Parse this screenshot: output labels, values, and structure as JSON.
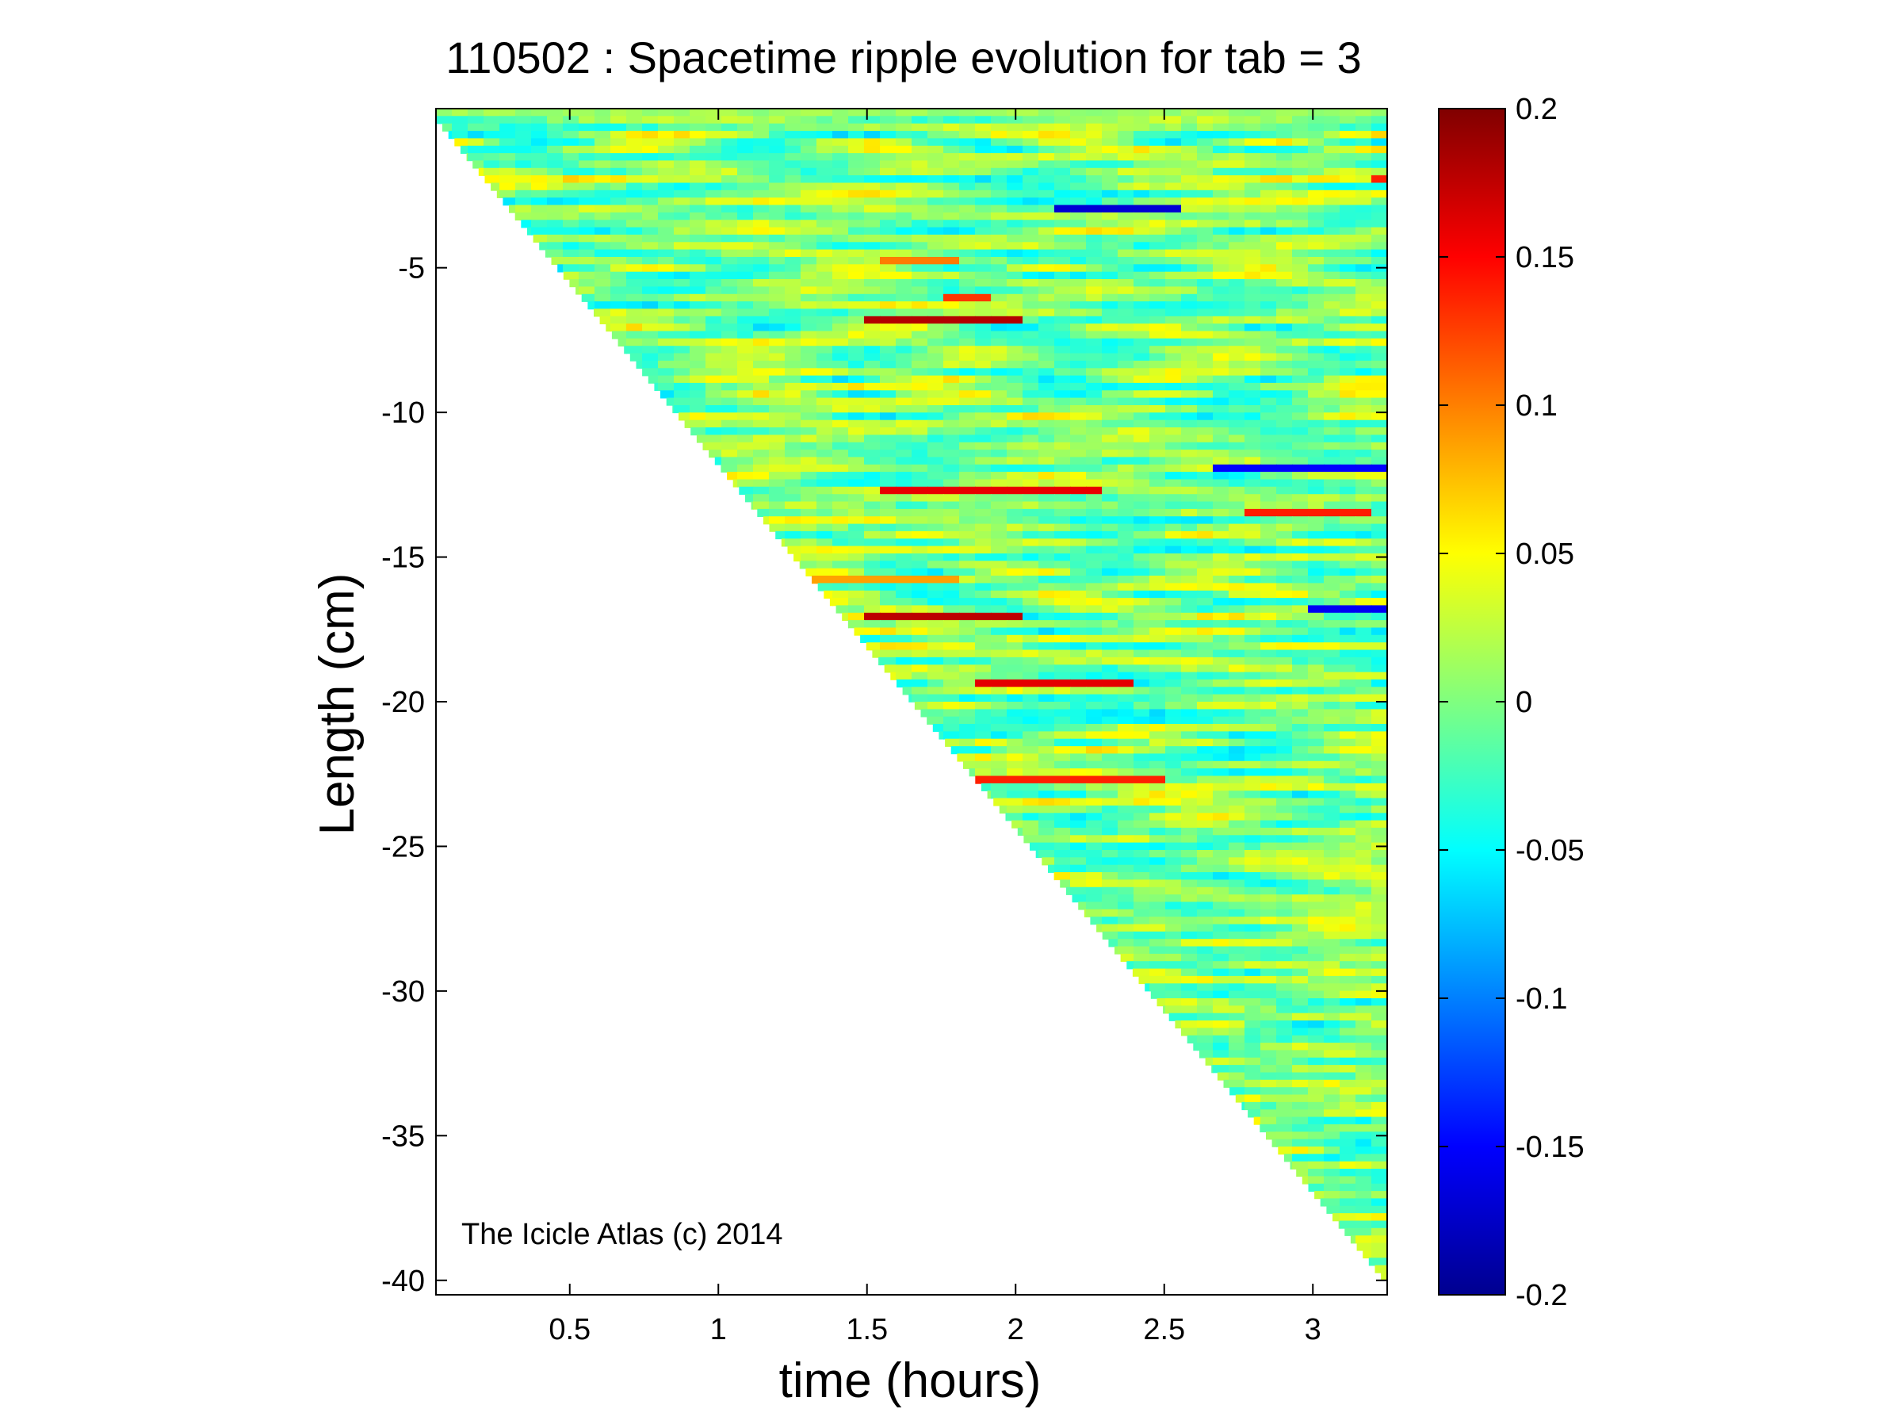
{
  "chart_data": {
    "type": "heatmap",
    "title": "110502 : Spacetime ripple evolution for tab = 3",
    "xlabel": "time (hours)",
    "ylabel": "Length (cm)",
    "xlim": [
      0.05,
      3.25
    ],
    "ylim": [
      -40.5,
      0.5
    ],
    "xticks": [
      0.5,
      1,
      1.5,
      2,
      2.5,
      3
    ],
    "xtick_labels": [
      "0.5",
      "1",
      "1.5",
      "2",
      "2.5",
      "3"
    ],
    "yticks": [
      -5,
      -10,
      -15,
      -20,
      -25,
      -30,
      -35,
      -40
    ],
    "ytick_labels": [
      "-5",
      "-10",
      "-15",
      "-20",
      "-25",
      "-30",
      "-35",
      "-40"
    ],
    "colorbar": {
      "colormap": "jet",
      "clim": [
        -0.2,
        0.2
      ],
      "ticks": [
        0.2,
        0.15,
        0.1,
        0.05,
        0,
        -0.05,
        -0.1,
        -0.15,
        -0.2
      ],
      "tick_labels": [
        "0.2",
        "0.15",
        "0.1",
        "0.05",
        "0",
        "-0.05",
        "-0.1",
        "-0.15",
        "-0.2"
      ]
    },
    "data_region": {
      "description_free": true,
      "boundary_time_per_cm": 0.0795,
      "boundary_start_time": 0.05
    },
    "annotation": "The Icicle Atlas (c) 2014",
    "grid": false,
    "legend": "none"
  }
}
